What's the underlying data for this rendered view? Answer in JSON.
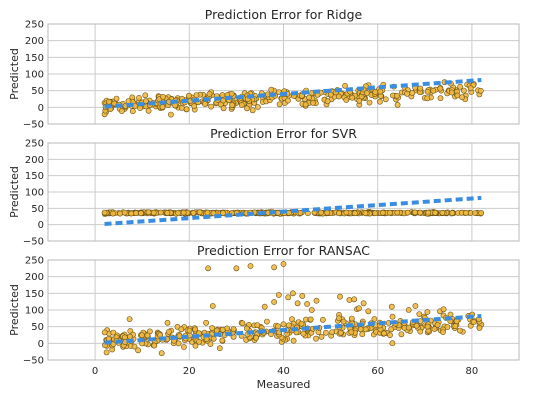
{
  "chart_data": [
    {
      "type": "scatter",
      "title": "Prediction Error for Ridge",
      "xlabel": "",
      "ylabel": "Predicted",
      "xlim": [
        -10,
        90
      ],
      "ylim": [
        -50,
        250
      ],
      "x_ticks": [],
      "y_ticks": [
        -50,
        0,
        50,
        100,
        150,
        200,
        250
      ],
      "grid": true,
      "point_color": "#f0b840",
      "line_color": "#3a8de0",
      "identity_line": {
        "x": [
          2,
          82
        ],
        "y": [
          2,
          82
        ]
      },
      "trend": {
        "slope": 0.58,
        "intercept": 4,
        "spread": 12
      },
      "outliers": {
        "x": [],
        "y": []
      }
    },
    {
      "type": "scatter",
      "title": "Prediction Error for SVR",
      "xlabel": "",
      "ylabel": "Predicted",
      "xlim": [
        -10,
        90
      ],
      "ylim": [
        -50,
        250
      ],
      "x_ticks": [],
      "y_ticks": [
        -50,
        0,
        50,
        100,
        150,
        200,
        250
      ],
      "grid": true,
      "point_color": "#f0b840",
      "line_color": "#3a8de0",
      "identity_line": {
        "x": [
          2,
          82
        ],
        "y": [
          2,
          82
        ]
      },
      "trend": {
        "slope": 0.0,
        "intercept": 36,
        "spread": 1.2
      },
      "outliers": {
        "x": [],
        "y": []
      }
    },
    {
      "type": "scatter",
      "title": "Prediction Error for RANSAC",
      "xlabel": "Measured",
      "ylabel": "Predicted",
      "xlim": [
        -10,
        90
      ],
      "ylim": [
        -50,
        250
      ],
      "x_ticks": [
        0,
        20,
        40,
        60,
        80
      ],
      "y_ticks": [
        -50,
        0,
        50,
        100,
        150,
        200,
        250
      ],
      "grid": true,
      "point_color": "#f0b840",
      "line_color": "#3a8de0",
      "identity_line": {
        "x": [
          2,
          82
        ],
        "y": [
          2,
          82
        ]
      },
      "trend": {
        "slope": 0.7,
        "intercept": 8,
        "spread": 16
      },
      "outliers": {
        "x": [
          24,
          30,
          33,
          38,
          40,
          25,
          36,
          38,
          39,
          41,
          42,
          43,
          44,
          45,
          46,
          47,
          52,
          54,
          55,
          56,
          57,
          58,
          63,
          68,
          74
        ],
        "y": [
          225,
          225,
          232,
          228,
          238,
          112,
          110,
          124,
          145,
          138,
          150,
          120,
          142,
          118,
          100,
          128,
          140,
          130,
          132,
          105,
          120,
          96,
          110,
          112,
          102
        ]
      }
    }
  ]
}
